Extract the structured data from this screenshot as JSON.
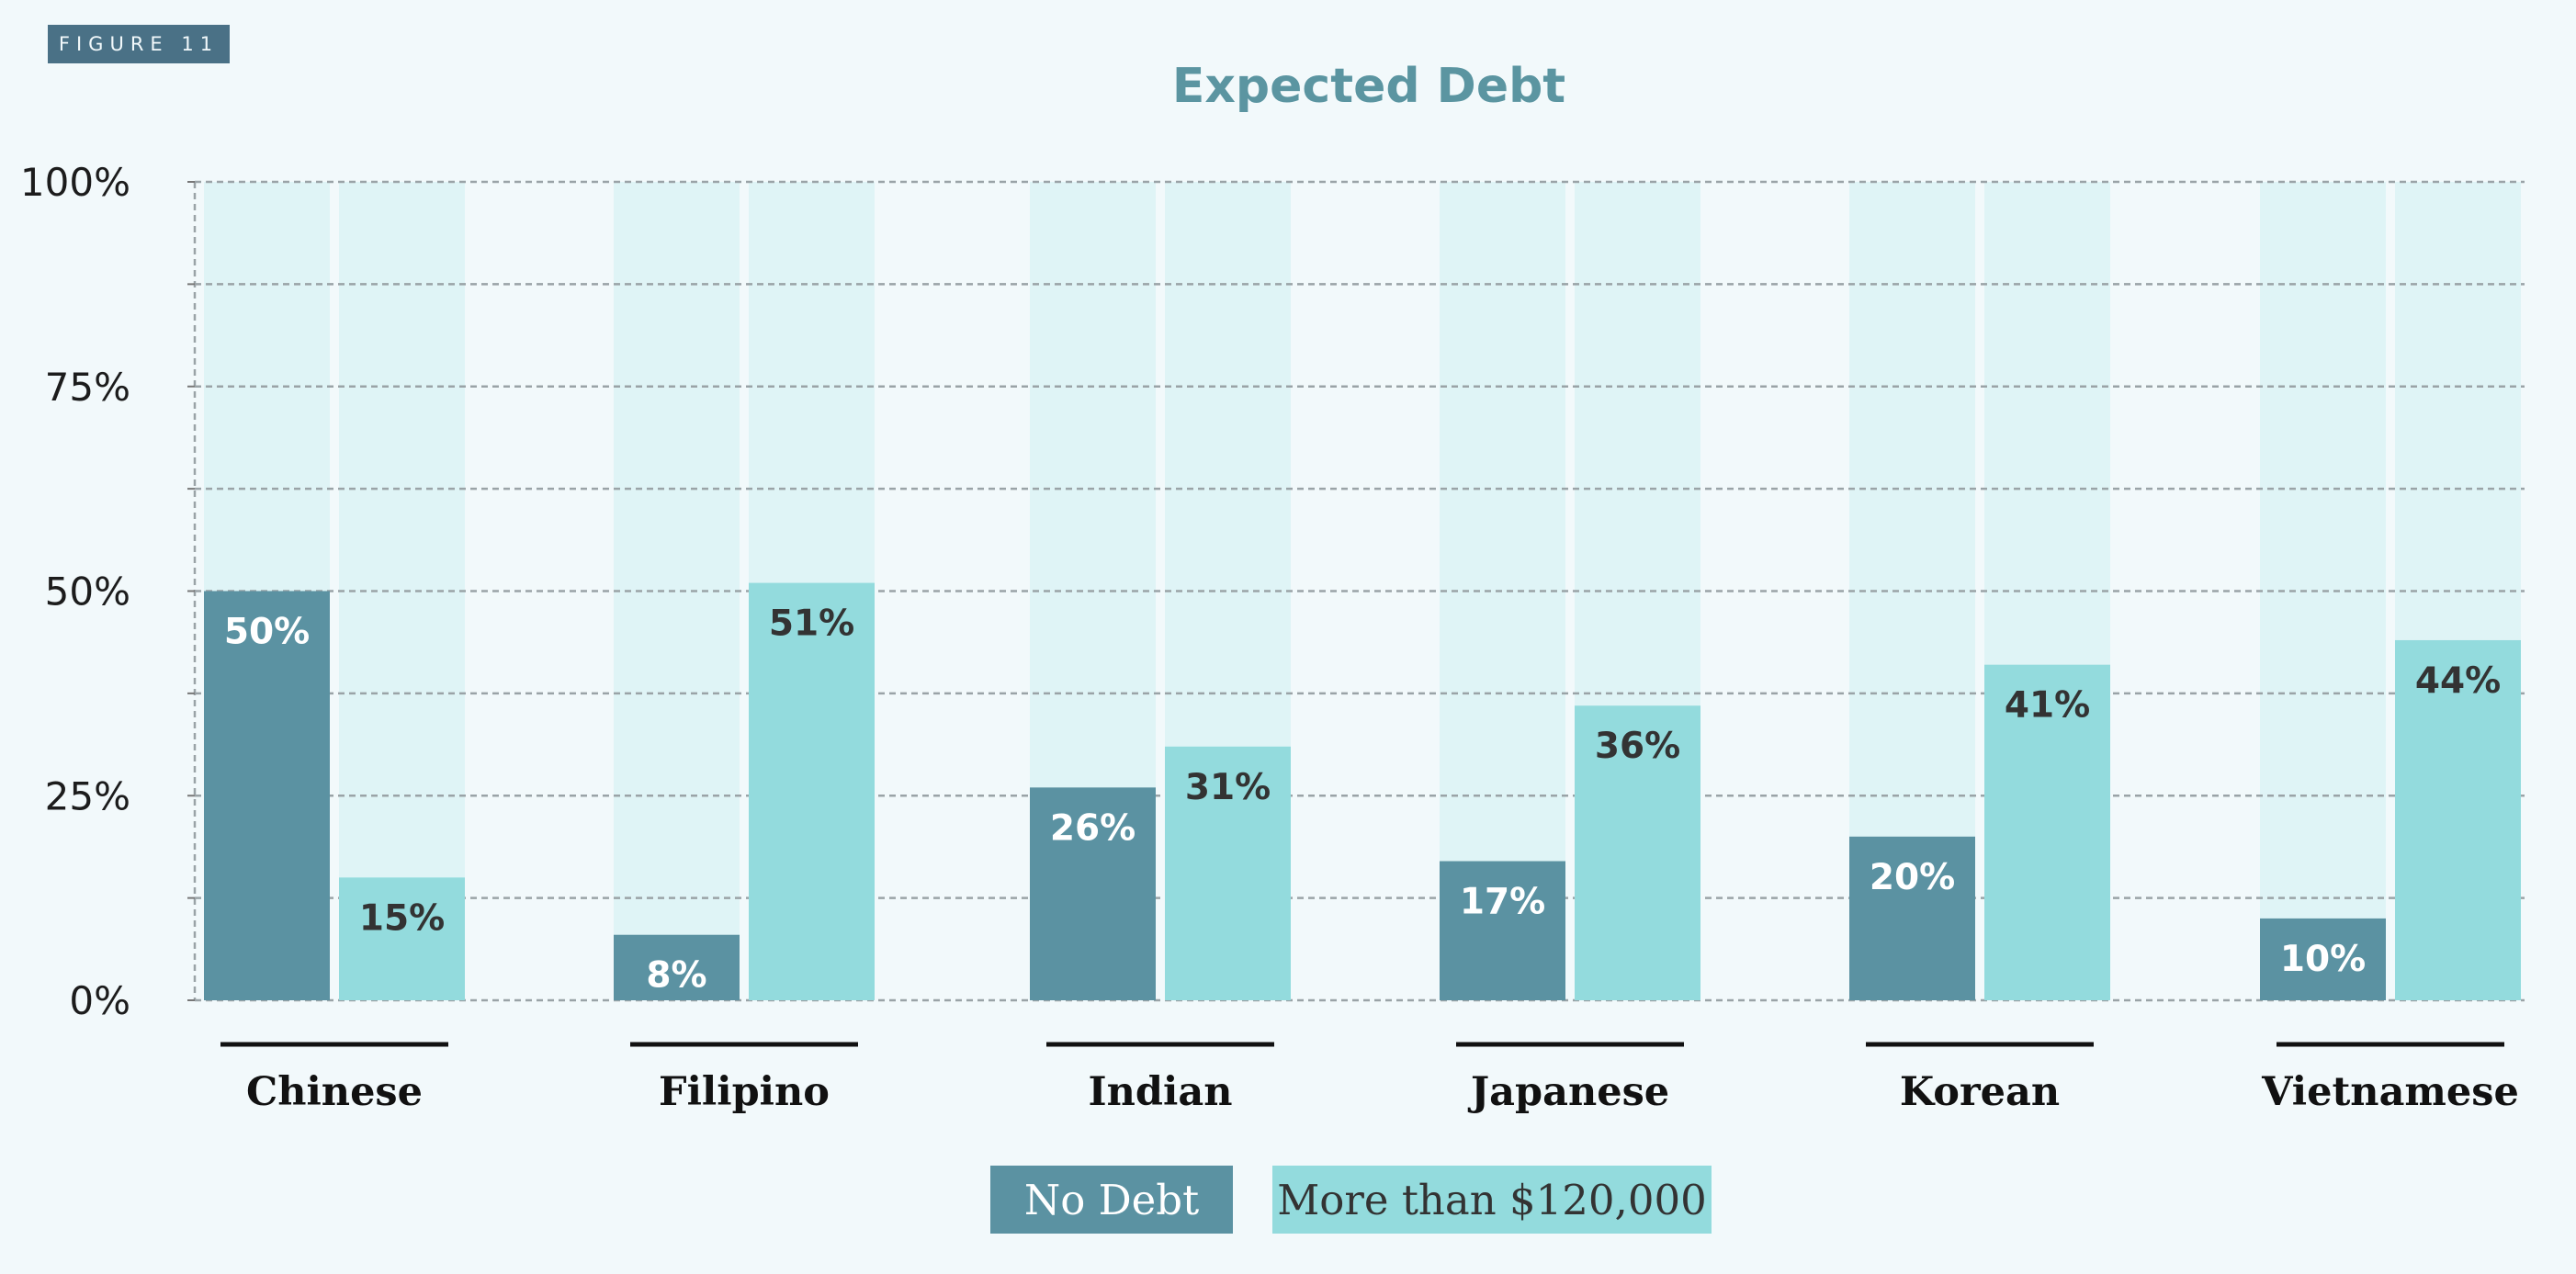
{
  "figure_label": "FIGURE 11",
  "chart_data": {
    "type": "bar",
    "title": "Expected Debt",
    "categories": [
      "Chinese",
      "Filipino",
      "Indian",
      "Japanese",
      "Korean",
      "Vietnamese"
    ],
    "series": [
      {
        "name": "No Debt",
        "values": [
          50,
          8,
          26,
          17,
          20,
          10
        ],
        "labels": [
          "50%",
          "8%",
          "26%",
          "17%",
          "20%",
          "10%"
        ],
        "color": "#5b92a2",
        "label_color": "#ffffff"
      },
      {
        "name": "More than $120,000",
        "values": [
          15,
          51,
          31,
          36,
          41,
          44
        ],
        "labels": [
          "15%",
          "51%",
          "31%",
          "36%",
          "41%",
          "44%"
        ],
        "color": "#93dbdd",
        "label_color": "#333333"
      }
    ],
    "ylim": [
      0,
      100
    ],
    "yticks": [
      "0%",
      "25%",
      "50%",
      "75%",
      "100%"
    ],
    "ytick_values": [
      0,
      25,
      50,
      75,
      100
    ],
    "background_bar_color": "#dff4f6",
    "grid": true,
    "legend": "bottom-center"
  }
}
